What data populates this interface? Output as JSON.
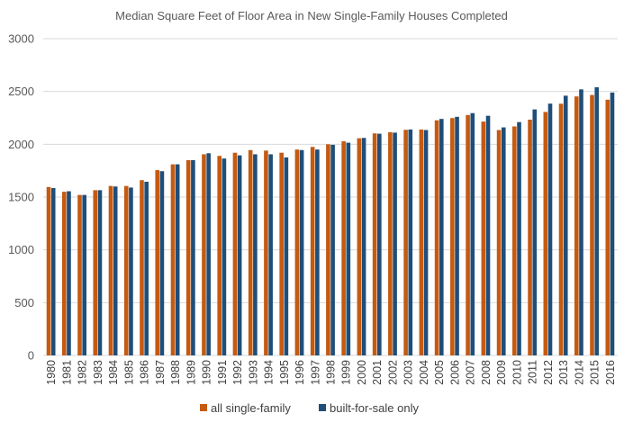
{
  "chart_data": {
    "type": "bar",
    "title": "Median Square Feet of Floor Area in New Single-Family Houses Completed",
    "xlabel": "",
    "ylabel": "",
    "ylim": [
      0,
      3000
    ],
    "yticks": [
      "0",
      "500",
      "1000",
      "1500",
      "2000",
      "2500",
      "3000"
    ],
    "grid": true,
    "legend_position": "bottom",
    "categories": [
      "1980",
      "1981",
      "1982",
      "1983",
      "1984",
      "1985",
      "1986",
      "1987",
      "1988",
      "1989",
      "1990",
      "1991",
      "1992",
      "1993",
      "1994",
      "1995",
      "1996",
      "1997",
      "1998",
      "1999",
      "2000",
      "2001",
      "2002",
      "2003",
      "2004",
      "2005",
      "2006",
      "2007",
      "2008",
      "2009",
      "2010",
      "2011",
      "2012",
      "2013",
      "2014",
      "2015",
      "2016"
    ],
    "series": [
      {
        "name": "all single-family",
        "color": "#C55A11",
        "values": [
          1595,
          1550,
          1520,
          1565,
          1605,
          1605,
          1660,
          1755,
          1810,
          1850,
          1905,
          1890,
          1920,
          1945,
          1940,
          1920,
          1950,
          1975,
          2000,
          2028,
          2057,
          2103,
          2114,
          2137,
          2140,
          2227,
          2248,
          2277,
          2215,
          2135,
          2169,
          2233,
          2306,
          2384,
          2453,
          2467,
          2422
        ]
      },
      {
        "name": "built-for-sale only",
        "color": "#1F4E79",
        "values": [
          1585,
          1555,
          1520,
          1565,
          1600,
          1590,
          1645,
          1745,
          1810,
          1850,
          1915,
          1865,
          1895,
          1905,
          1905,
          1875,
          1945,
          1950,
          1995,
          2015,
          2060,
          2100,
          2110,
          2140,
          2135,
          2240,
          2260,
          2295,
          2270,
          2160,
          2210,
          2330,
          2385,
          2460,
          2520,
          2540,
          2490
        ]
      }
    ]
  }
}
